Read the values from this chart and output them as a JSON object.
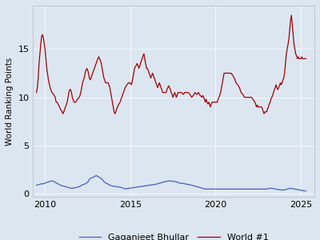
{
  "title": "",
  "ylabel": "World Ranking Points",
  "xlabel": "",
  "background_color": "#dce6f0",
  "axes_background": "#dce6f0",
  "world1_color": "#a00000",
  "bhullar_color": "#4060c8",
  "legend_labels": [
    "Gaganjeet Bhullar",
    "World #1"
  ],
  "x_ticks": [
    2010,
    2015,
    2020,
    2025
  ],
  "y_ticks": [
    0,
    5,
    10,
    15
  ],
  "ylim": [
    -0.3,
    19.5
  ],
  "xlim": [
    2009.3,
    2025.8
  ],
  "world1_data": [
    [
      2009.5,
      10.5
    ],
    [
      2009.55,
      11.0
    ],
    [
      2009.6,
      12.0
    ],
    [
      2009.65,
      13.5
    ],
    [
      2009.7,
      14.5
    ],
    [
      2009.75,
      15.5
    ],
    [
      2009.8,
      16.3
    ],
    [
      2009.85,
      16.5
    ],
    [
      2009.9,
      16.2
    ],
    [
      2010.0,
      15.0
    ],
    [
      2010.1,
      13.0
    ],
    [
      2010.2,
      11.8
    ],
    [
      2010.3,
      11.0
    ],
    [
      2010.4,
      10.5
    ],
    [
      2010.5,
      10.3
    ],
    [
      2010.6,
      10.0
    ],
    [
      2010.65,
      9.5
    ],
    [
      2010.7,
      9.5
    ],
    [
      2010.8,
      9.2
    ],
    [
      2010.9,
      8.8
    ],
    [
      2011.0,
      8.5
    ],
    [
      2011.05,
      8.3
    ],
    [
      2011.1,
      8.5
    ],
    [
      2011.2,
      9.0
    ],
    [
      2011.3,
      9.5
    ],
    [
      2011.35,
      10.0
    ],
    [
      2011.4,
      10.5
    ],
    [
      2011.45,
      10.8
    ],
    [
      2011.5,
      10.8
    ],
    [
      2011.55,
      10.5
    ],
    [
      2011.6,
      10.0
    ],
    [
      2011.7,
      9.5
    ],
    [
      2011.8,
      9.5
    ],
    [
      2011.9,
      9.8
    ],
    [
      2012.0,
      10.0
    ],
    [
      2012.05,
      10.2
    ],
    [
      2012.1,
      10.5
    ],
    [
      2012.15,
      11.0
    ],
    [
      2012.2,
      11.5
    ],
    [
      2012.3,
      12.0
    ],
    [
      2012.35,
      12.5
    ],
    [
      2012.4,
      12.8
    ],
    [
      2012.45,
      13.0
    ],
    [
      2012.5,
      12.8
    ],
    [
      2012.55,
      12.5
    ],
    [
      2012.6,
      12.0
    ],
    [
      2012.65,
      11.8
    ],
    [
      2012.7,
      12.0
    ],
    [
      2012.75,
      12.3
    ],
    [
      2012.8,
      12.5
    ],
    [
      2012.85,
      12.8
    ],
    [
      2012.9,
      13.0
    ],
    [
      2012.95,
      13.3
    ],
    [
      2013.0,
      13.5
    ],
    [
      2013.05,
      13.8
    ],
    [
      2013.1,
      14.0
    ],
    [
      2013.15,
      14.2
    ],
    [
      2013.2,
      14.0
    ],
    [
      2013.25,
      13.8
    ],
    [
      2013.3,
      13.5
    ],
    [
      2013.35,
      13.0
    ],
    [
      2013.4,
      12.5
    ],
    [
      2013.45,
      12.0
    ],
    [
      2013.5,
      11.8
    ],
    [
      2013.55,
      11.5
    ],
    [
      2013.6,
      11.5
    ],
    [
      2013.7,
      11.5
    ],
    [
      2013.75,
      11.3
    ],
    [
      2013.8,
      11.0
    ],
    [
      2013.85,
      10.5
    ],
    [
      2013.9,
      10.0
    ],
    [
      2013.95,
      9.5
    ],
    [
      2014.0,
      9.0
    ],
    [
      2014.05,
      8.5
    ],
    [
      2014.1,
      8.3
    ],
    [
      2014.15,
      8.5
    ],
    [
      2014.2,
      8.8
    ],
    [
      2014.3,
      9.2
    ],
    [
      2014.4,
      9.5
    ],
    [
      2014.5,
      10.0
    ],
    [
      2014.6,
      10.5
    ],
    [
      2014.7,
      11.0
    ],
    [
      2014.8,
      11.3
    ],
    [
      2014.9,
      11.5
    ],
    [
      2015.0,
      11.5
    ],
    [
      2015.05,
      11.3
    ],
    [
      2015.1,
      11.5
    ],
    [
      2015.15,
      12.0
    ],
    [
      2015.2,
      12.5
    ],
    [
      2015.25,
      13.0
    ],
    [
      2015.3,
      13.2
    ],
    [
      2015.35,
      13.3
    ],
    [
      2015.4,
      13.5
    ],
    [
      2015.45,
      13.3
    ],
    [
      2015.5,
      13.0
    ],
    [
      2015.55,
      13.2
    ],
    [
      2015.6,
      13.5
    ],
    [
      2015.65,
      13.8
    ],
    [
      2015.7,
      14.0
    ],
    [
      2015.75,
      14.3
    ],
    [
      2015.8,
      14.5
    ],
    [
      2015.85,
      14.0
    ],
    [
      2015.9,
      13.5
    ],
    [
      2015.95,
      13.0
    ],
    [
      2016.0,
      13.0
    ],
    [
      2016.05,
      12.8
    ],
    [
      2016.1,
      12.5
    ],
    [
      2016.15,
      12.3
    ],
    [
      2016.2,
      12.0
    ],
    [
      2016.25,
      12.2
    ],
    [
      2016.3,
      12.5
    ],
    [
      2016.35,
      12.3
    ],
    [
      2016.4,
      12.0
    ],
    [
      2016.45,
      11.8
    ],
    [
      2016.5,
      11.5
    ],
    [
      2016.55,
      11.3
    ],
    [
      2016.6,
      11.0
    ],
    [
      2016.65,
      11.2
    ],
    [
      2016.7,
      11.5
    ],
    [
      2016.75,
      11.3
    ],
    [
      2016.8,
      11.0
    ],
    [
      2016.85,
      10.8
    ],
    [
      2016.9,
      10.5
    ],
    [
      2016.95,
      10.5
    ],
    [
      2017.0,
      10.5
    ],
    [
      2017.05,
      10.5
    ],
    [
      2017.1,
      10.5
    ],
    [
      2017.15,
      10.8
    ],
    [
      2017.2,
      11.0
    ],
    [
      2017.25,
      11.2
    ],
    [
      2017.3,
      11.0
    ],
    [
      2017.35,
      10.8
    ],
    [
      2017.4,
      10.5
    ],
    [
      2017.45,
      10.3
    ],
    [
      2017.5,
      10.0
    ],
    [
      2017.55,
      10.2
    ],
    [
      2017.6,
      10.5
    ],
    [
      2017.65,
      10.3
    ],
    [
      2017.7,
      10.0
    ],
    [
      2017.75,
      10.2
    ],
    [
      2017.8,
      10.5
    ],
    [
      2017.85,
      10.5
    ],
    [
      2017.9,
      10.5
    ],
    [
      2017.95,
      10.5
    ],
    [
      2018.0,
      10.5
    ],
    [
      2018.1,
      10.3
    ],
    [
      2018.2,
      10.5
    ],
    [
      2018.3,
      10.5
    ],
    [
      2018.4,
      10.5
    ],
    [
      2018.5,
      10.3
    ],
    [
      2018.6,
      10.0
    ],
    [
      2018.7,
      10.2
    ],
    [
      2018.8,
      10.5
    ],
    [
      2018.9,
      10.3
    ],
    [
      2019.0,
      10.5
    ],
    [
      2019.05,
      10.3
    ],
    [
      2019.1,
      10.2
    ],
    [
      2019.2,
      10.0
    ],
    [
      2019.25,
      10.2
    ],
    [
      2019.3,
      10.0
    ],
    [
      2019.35,
      9.8
    ],
    [
      2019.4,
      9.5
    ],
    [
      2019.45,
      9.8
    ],
    [
      2019.5,
      9.5
    ],
    [
      2019.55,
      9.3
    ],
    [
      2019.6,
      9.5
    ],
    [
      2019.65,
      9.3
    ],
    [
      2019.7,
      9.0
    ],
    [
      2019.75,
      9.3
    ],
    [
      2019.8,
      9.5
    ],
    [
      2019.85,
      9.5
    ],
    [
      2019.9,
      9.5
    ],
    [
      2019.95,
      9.5
    ],
    [
      2020.0,
      9.5
    ],
    [
      2020.1,
      9.5
    ],
    [
      2020.15,
      9.8
    ],
    [
      2020.2,
      10.0
    ],
    [
      2020.3,
      10.5
    ],
    [
      2020.4,
      11.5
    ],
    [
      2020.45,
      12.0
    ],
    [
      2020.5,
      12.5
    ],
    [
      2020.6,
      12.5
    ],
    [
      2020.7,
      12.5
    ],
    [
      2020.8,
      12.5
    ],
    [
      2020.9,
      12.5
    ],
    [
      2021.0,
      12.3
    ],
    [
      2021.1,
      12.0
    ],
    [
      2021.2,
      11.5
    ],
    [
      2021.3,
      11.3
    ],
    [
      2021.4,
      11.0
    ],
    [
      2021.5,
      10.5
    ],
    [
      2021.6,
      10.3
    ],
    [
      2021.7,
      10.0
    ],
    [
      2021.8,
      10.0
    ],
    [
      2021.9,
      10.0
    ],
    [
      2022.0,
      10.0
    ],
    [
      2022.1,
      10.0
    ],
    [
      2022.2,
      9.8
    ],
    [
      2022.3,
      9.5
    ],
    [
      2022.35,
      9.3
    ],
    [
      2022.4,
      9.0
    ],
    [
      2022.45,
      9.2
    ],
    [
      2022.5,
      9.0
    ],
    [
      2022.6,
      9.0
    ],
    [
      2022.7,
      9.0
    ],
    [
      2022.75,
      8.8
    ],
    [
      2022.8,
      8.5
    ],
    [
      2022.85,
      8.3
    ],
    [
      2022.9,
      8.5
    ],
    [
      2022.95,
      8.5
    ],
    [
      2023.0,
      8.5
    ],
    [
      2023.05,
      8.8
    ],
    [
      2023.1,
      9.0
    ],
    [
      2023.15,
      9.3
    ],
    [
      2023.2,
      9.5
    ],
    [
      2023.25,
      9.8
    ],
    [
      2023.3,
      10.0
    ],
    [
      2023.35,
      10.2
    ],
    [
      2023.4,
      10.5
    ],
    [
      2023.45,
      10.8
    ],
    [
      2023.5,
      11.0
    ],
    [
      2023.55,
      11.3
    ],
    [
      2023.6,
      11.0
    ],
    [
      2023.65,
      10.8
    ],
    [
      2023.7,
      11.0
    ],
    [
      2023.75,
      11.2
    ],
    [
      2023.8,
      11.5
    ],
    [
      2023.85,
      11.3
    ],
    [
      2023.9,
      11.5
    ],
    [
      2023.95,
      11.8
    ],
    [
      2024.0,
      12.0
    ],
    [
      2024.05,
      12.5
    ],
    [
      2024.1,
      13.5
    ],
    [
      2024.15,
      14.5
    ],
    [
      2024.2,
      15.0
    ],
    [
      2024.25,
      15.5
    ],
    [
      2024.3,
      16.0
    ],
    [
      2024.35,
      17.0
    ],
    [
      2024.4,
      18.0
    ],
    [
      2024.45,
      18.5
    ],
    [
      2024.5,
      17.5
    ],
    [
      2024.55,
      16.5
    ],
    [
      2024.6,
      15.5
    ],
    [
      2024.65,
      15.0
    ],
    [
      2024.7,
      14.5
    ],
    [
      2024.75,
      14.3
    ],
    [
      2024.8,
      14.0
    ],
    [
      2024.85,
      14.2
    ],
    [
      2024.9,
      14.0
    ],
    [
      2024.95,
      14.0
    ],
    [
      2025.0,
      14.0
    ],
    [
      2025.05,
      14.2
    ],
    [
      2025.1,
      14.0
    ],
    [
      2025.15,
      14.0
    ],
    [
      2025.2,
      14.0
    ],
    [
      2025.3,
      14.0
    ]
  ],
  "bhullar_data": [
    [
      2009.5,
      0.9
    ],
    [
      2009.6,
      0.95
    ],
    [
      2009.7,
      1.0
    ],
    [
      2009.8,
      1.05
    ],
    [
      2009.9,
      1.05
    ],
    [
      2010.0,
      1.1
    ],
    [
      2010.1,
      1.2
    ],
    [
      2010.2,
      1.25
    ],
    [
      2010.3,
      1.3
    ],
    [
      2010.4,
      1.35
    ],
    [
      2010.5,
      1.3
    ],
    [
      2010.6,
      1.2
    ],
    [
      2010.7,
      1.1
    ],
    [
      2010.8,
      1.0
    ],
    [
      2010.9,
      0.9
    ],
    [
      2011.0,
      0.85
    ],
    [
      2011.1,
      0.8
    ],
    [
      2011.2,
      0.75
    ],
    [
      2011.3,
      0.7
    ],
    [
      2011.4,
      0.65
    ],
    [
      2011.5,
      0.6
    ],
    [
      2011.6,
      0.58
    ],
    [
      2011.7,
      0.62
    ],
    [
      2011.8,
      0.65
    ],
    [
      2011.9,
      0.7
    ],
    [
      2012.0,
      0.75
    ],
    [
      2012.1,
      0.85
    ],
    [
      2012.2,
      0.95
    ],
    [
      2012.3,
      1.0
    ],
    [
      2012.4,
      1.1
    ],
    [
      2012.5,
      1.2
    ],
    [
      2012.6,
      1.5
    ],
    [
      2012.65,
      1.6
    ],
    [
      2012.7,
      1.65
    ],
    [
      2012.8,
      1.7
    ],
    [
      2012.85,
      1.75
    ],
    [
      2012.9,
      1.8
    ],
    [
      2012.95,
      1.85
    ],
    [
      2013.0,
      1.9
    ],
    [
      2013.05,
      1.85
    ],
    [
      2013.1,
      1.8
    ],
    [
      2013.15,
      1.75
    ],
    [
      2013.2,
      1.7
    ],
    [
      2013.3,
      1.6
    ],
    [
      2013.4,
      1.4
    ],
    [
      2013.5,
      1.2
    ],
    [
      2013.6,
      1.1
    ],
    [
      2013.7,
      1.0
    ],
    [
      2013.8,
      0.9
    ],
    [
      2013.9,
      0.85
    ],
    [
      2014.0,
      0.8
    ],
    [
      2014.1,
      0.78
    ],
    [
      2014.2,
      0.75
    ],
    [
      2014.3,
      0.72
    ],
    [
      2014.4,
      0.7
    ],
    [
      2014.5,
      0.65
    ],
    [
      2014.6,
      0.6
    ],
    [
      2014.65,
      0.55
    ],
    [
      2014.7,
      0.52
    ],
    [
      2016.5,
      1.0
    ],
    [
      2016.6,
      1.05
    ],
    [
      2016.7,
      1.1
    ],
    [
      2016.8,
      1.15
    ],
    [
      2016.9,
      1.2
    ],
    [
      2017.0,
      1.25
    ],
    [
      2017.1,
      1.28
    ],
    [
      2017.2,
      1.32
    ],
    [
      2017.3,
      1.35
    ],
    [
      2017.4,
      1.33
    ],
    [
      2017.5,
      1.3
    ],
    [
      2017.6,
      1.28
    ],
    [
      2017.7,
      1.25
    ],
    [
      2017.8,
      1.2
    ],
    [
      2017.9,
      1.1
    ],
    [
      2018.0,
      1.1
    ],
    [
      2018.1,
      1.08
    ],
    [
      2018.2,
      1.05
    ],
    [
      2018.3,
      1.0
    ],
    [
      2018.4,
      0.98
    ],
    [
      2018.5,
      0.95
    ],
    [
      2018.6,
      0.9
    ],
    [
      2018.7,
      0.85
    ],
    [
      2018.8,
      0.8
    ],
    [
      2018.9,
      0.75
    ],
    [
      2019.0,
      0.7
    ],
    [
      2019.1,
      0.65
    ],
    [
      2019.2,
      0.6
    ],
    [
      2019.3,
      0.55
    ],
    [
      2019.4,
      0.5
    ],
    [
      2023.0,
      0.5
    ],
    [
      2023.05,
      0.52
    ],
    [
      2023.1,
      0.55
    ],
    [
      2023.15,
      0.58
    ],
    [
      2023.2,
      0.6
    ],
    [
      2023.5,
      0.52
    ],
    [
      2023.6,
      0.48
    ],
    [
      2023.7,
      0.44
    ],
    [
      2023.8,
      0.42
    ],
    [
      2024.0,
      0.4
    ],
    [
      2024.1,
      0.45
    ],
    [
      2024.2,
      0.5
    ],
    [
      2024.3,
      0.55
    ],
    [
      2024.4,
      0.58
    ],
    [
      2024.5,
      0.55
    ],
    [
      2024.6,
      0.52
    ],
    [
      2024.7,
      0.48
    ],
    [
      2024.8,
      0.45
    ],
    [
      2024.9,
      0.42
    ],
    [
      2025.0,
      0.38
    ],
    [
      2025.1,
      0.35
    ],
    [
      2025.2,
      0.32
    ],
    [
      2025.3,
      0.3
    ]
  ]
}
